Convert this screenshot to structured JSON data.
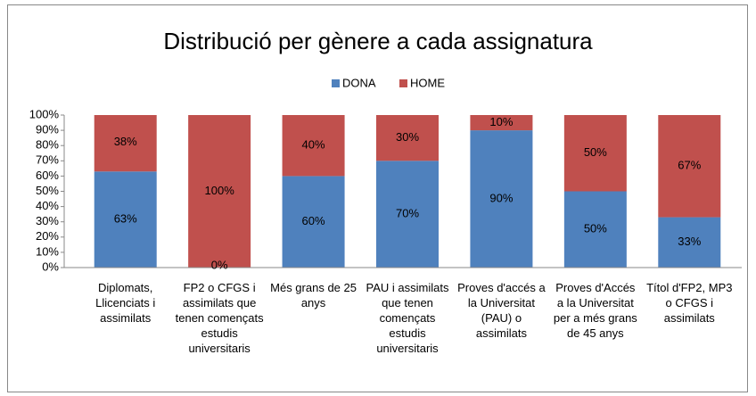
{
  "chart_data": {
    "type": "stacked_bar_100",
    "title": "Distribució per gènere a cada assignatura",
    "categories": [
      "Diplomats, Llicenciats i assimilats",
      "FP2 o CFGS i assimilats que tenen començats estudis universitaris",
      "Més grans de 25 anys",
      "PAU i assimilats que tenen començats estudis universitaris",
      "Proves d'accés a la Universitat (PAU) o assimilats",
      "Proves d'Accés a la Universitat per a més grans de 45 anys",
      "Títol d'FP2, MP3 o CFGS i assimilats"
    ],
    "series": [
      {
        "name": "DONA",
        "color": "#4f81bd",
        "values": [
          63,
          0,
          60,
          70,
          90,
          50,
          33
        ],
        "value_labels": [
          "63%",
          "0%",
          "60%",
          "70%",
          "90%",
          "50%",
          "33%"
        ]
      },
      {
        "name": "HOME",
        "color": "#c0504d",
        "values": [
          38,
          100,
          40,
          30,
          10,
          50,
          67
        ],
        "value_labels": [
          "38%",
          "100%",
          "40%",
          "30%",
          "10%",
          "50%",
          "67%"
        ]
      }
    ],
    "ylim": [
      0,
      100
    ],
    "yticks": [
      {
        "value": 0,
        "label": "0%"
      },
      {
        "value": 10,
        "label": "10%"
      },
      {
        "value": 20,
        "label": "20%"
      },
      {
        "value": 30,
        "label": "30%"
      },
      {
        "value": 40,
        "label": "40%"
      },
      {
        "value": 50,
        "label": "50%"
      },
      {
        "value": 60,
        "label": "60%"
      },
      {
        "value": 70,
        "label": "70%"
      },
      {
        "value": 80,
        "label": "80%"
      },
      {
        "value": 90,
        "label": "90%"
      },
      {
        "value": 100,
        "label": "100%"
      }
    ],
    "legend": "top"
  }
}
